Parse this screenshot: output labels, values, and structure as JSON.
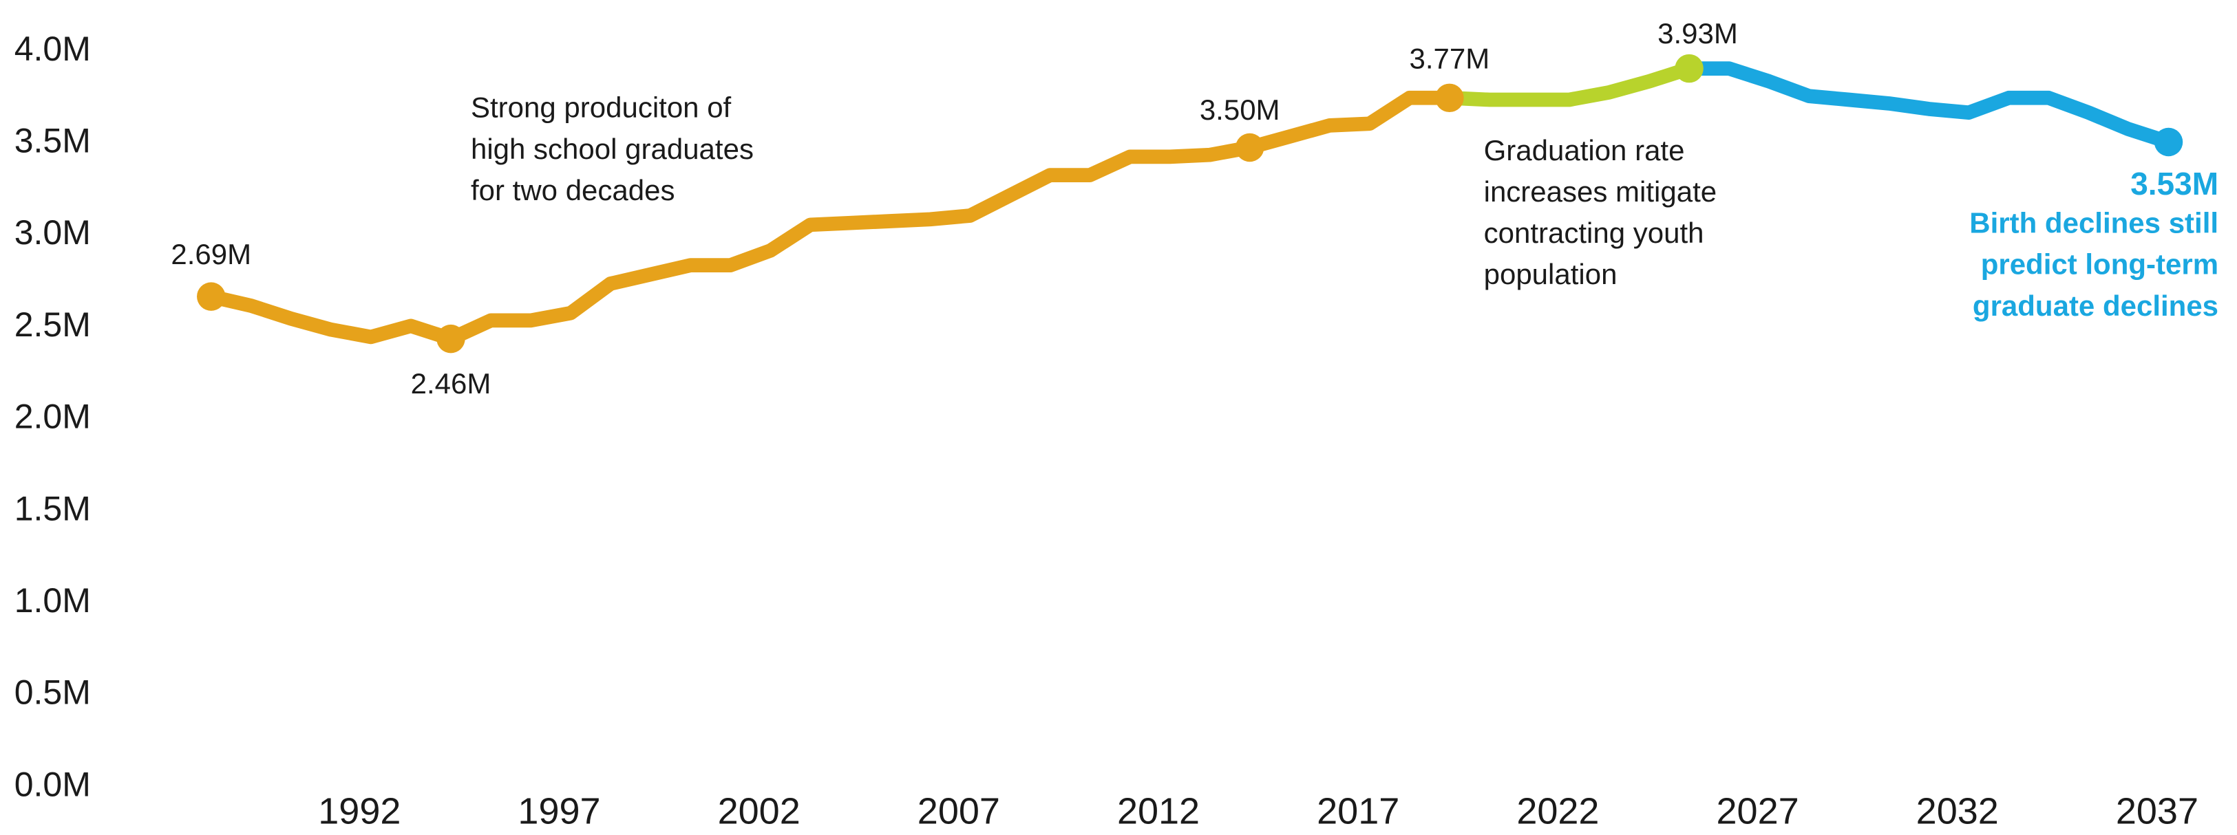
{
  "chart_data": {
    "type": "line",
    "xlim": [
      1988,
      2037
    ],
    "ylim": [
      0,
      4
    ],
    "xticks": [
      1992,
      1997,
      2002,
      2007,
      2012,
      2017,
      2022,
      2027,
      2032,
      2037
    ],
    "yticks": [
      {
        "value": 0,
        "label": "0.0M"
      },
      {
        "value": 0.5,
        "label": "0.5M"
      },
      {
        "value": 1,
        "label": "1.0M"
      },
      {
        "value": 1.5,
        "label": "1.5M"
      },
      {
        "value": 2,
        "label": "2.0M"
      },
      {
        "value": 2.5,
        "label": "2.5M"
      },
      {
        "value": 3,
        "label": "3.0M"
      },
      {
        "value": 3.5,
        "label": "3.5M"
      },
      {
        "value": 4,
        "label": "4.0M"
      }
    ],
    "series": [
      {
        "color": "#e6a21b",
        "x": [
          1988,
          1989,
          1990,
          1991,
          1992,
          1993,
          1994,
          1995,
          1996,
          1997,
          1998,
          1999,
          2000,
          2001,
          2002,
          2003,
          2004,
          2005,
          2006,
          2007,
          2008,
          2009,
          2010,
          2011,
          2012,
          2013,
          2014,
          2015,
          2016,
          2017,
          2018,
          2019
        ],
        "values": [
          2.69,
          2.64,
          2.57,
          2.51,
          2.47,
          2.53,
          2.46,
          2.56,
          2.56,
          2.6,
          2.76,
          2.81,
          2.86,
          2.86,
          2.94,
          3.08,
          3.09,
          3.1,
          3.11,
          3.13,
          3.24,
          3.35,
          3.35,
          3.45,
          3.45,
          3.46,
          3.5,
          3.56,
          3.62,
          3.63,
          3.77,
          3.77
        ]
      },
      {
        "color": "#b8d32c",
        "x": [
          2019,
          2020,
          2021,
          2022,
          2023,
          2024,
          2025
        ],
        "values": [
          3.77,
          3.76,
          3.76,
          3.76,
          3.8,
          3.86,
          3.93
        ]
      },
      {
        "color": "#1aa7e0",
        "x": [
          2025,
          2026,
          2027,
          2028,
          2029,
          2030,
          2031,
          2032,
          2033,
          2034,
          2035,
          2036,
          2037
        ],
        "values": [
          3.93,
          3.93,
          3.86,
          3.78,
          3.76,
          3.74,
          3.71,
          3.69,
          3.77,
          3.77,
          3.69,
          3.6,
          3.53
        ]
      }
    ],
    "point_labels": [
      {
        "x": 1988,
        "value": 2.69,
        "label": "2.69M",
        "color": "#e6a21b"
      },
      {
        "x": 1994,
        "value": 2.46,
        "label": "2.46M",
        "color": "#e6a21b"
      },
      {
        "x": 2014,
        "value": 3.5,
        "label": "3.50M",
        "color": "#e6a21b"
      },
      {
        "x": 2019,
        "value": 3.77,
        "label": "3.77M",
        "color": "#e6a21b"
      },
      {
        "x": 2025,
        "value": 3.93,
        "label": "3.93M",
        "color": "#b8d32c"
      },
      {
        "x": 2037,
        "value": 3.53,
        "label": "3.53M",
        "color": "#1aa7e0"
      }
    ],
    "annotations": [
      {
        "lines": [
          "Strong produciton of",
          "high school graduates",
          "for two decades"
        ]
      },
      {
        "lines": [
          "Graduation rate",
          "increases mitigate",
          "contracting youth",
          "population"
        ]
      },
      {
        "lines": [
          "Birth declines still",
          "predict long-term",
          "graduate declines"
        ],
        "color": "#1aa7e0"
      }
    ]
  }
}
